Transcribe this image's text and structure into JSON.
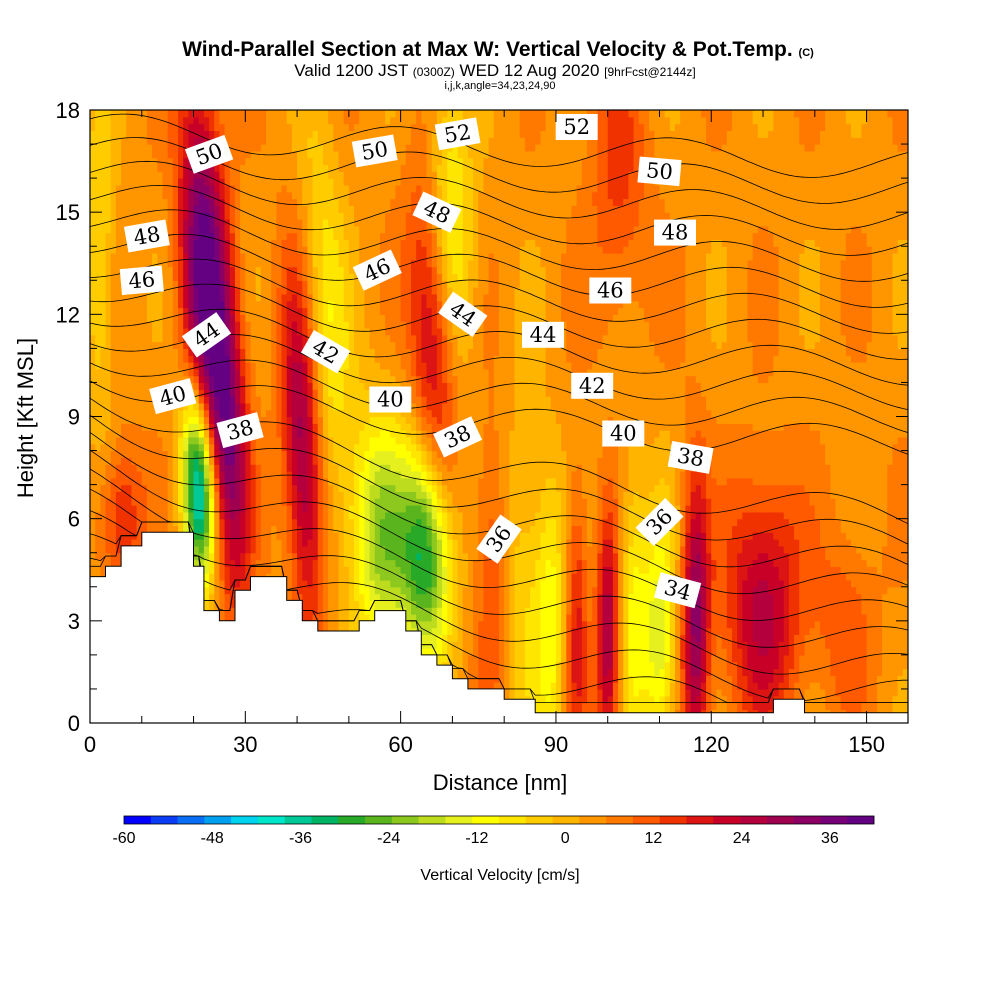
{
  "chart_data": {
    "type": "heatmap",
    "title": "Wind-Parallel Section at Max W: Vertical Velocity & Pot.Temp.",
    "title_mark": "(C)",
    "subtitle_valid": "Valid 1200 JST",
    "subtitle_utc": "(0300Z)",
    "subtitle_date": "WED 12 Aug 2020",
    "subtitle_fcst": "[9hrFcst@2144z]",
    "subtitle_indices": "i,j,k,angle=34,23,24,90",
    "xlabel": "Distance [nm]",
    "ylabel": "Height [Kft MSL]",
    "xlim": [
      0,
      158
    ],
    "ylim": [
      0,
      18
    ],
    "x_ticks": [
      0,
      30,
      60,
      90,
      120,
      150
    ],
    "y_ticks": [
      0,
      3,
      6,
      9,
      12,
      15,
      18
    ],
    "colorbar": {
      "label": "Vertical Velocity [cm/s]",
      "range": [
        -60,
        42
      ],
      "ticks": [
        -60,
        -48,
        -36,
        -24,
        -12,
        0,
        12,
        24,
        36
      ],
      "colors": [
        "#0000ff",
        "#0a3cf5",
        "#0a6ef5",
        "#00a0f0",
        "#00d2f0",
        "#00e6c8",
        "#00c896",
        "#00b464",
        "#28aa28",
        "#5ab41e",
        "#8cc81e",
        "#bedc1e",
        "#e6f01e",
        "#ffff00",
        "#ffe600",
        "#ffcc00",
        "#ffb400",
        "#ff9600",
        "#ff7800",
        "#ff5a00",
        "#f03200",
        "#dc1414",
        "#c80028",
        "#b4003c",
        "#a00050",
        "#8c0064",
        "#780078",
        "#640082"
      ]
    },
    "terrain_profile": [
      [
        0,
        4.3
      ],
      [
        3,
        4.3
      ],
      [
        3,
        4.6
      ],
      [
        6,
        4.6
      ],
      [
        6,
        5.2
      ],
      [
        10,
        5.2
      ],
      [
        10,
        5.6
      ],
      [
        20,
        5.6
      ],
      [
        20,
        4.6
      ],
      [
        22,
        4.6
      ],
      [
        22,
        3.3
      ],
      [
        25,
        3.3
      ],
      [
        25,
        3.0
      ],
      [
        28,
        3.0
      ],
      [
        28,
        3.9
      ],
      [
        31,
        3.9
      ],
      [
        31,
        4.3
      ],
      [
        38,
        4.3
      ],
      [
        38,
        3.6
      ],
      [
        41,
        3.6
      ],
      [
        41,
        3.0
      ],
      [
        44,
        3.0
      ],
      [
        44,
        2.7
      ],
      [
        52,
        2.7
      ],
      [
        52,
        3.0
      ],
      [
        55,
        3.0
      ],
      [
        55,
        3.3
      ],
      [
        61,
        3.3
      ],
      [
        61,
        2.7
      ],
      [
        64,
        2.7
      ],
      [
        64,
        2.0
      ],
      [
        67,
        2.0
      ],
      [
        67,
        1.7
      ],
      [
        70,
        1.7
      ],
      [
        70,
        1.3
      ],
      [
        73,
        1.3
      ],
      [
        73,
        1.0
      ],
      [
        80,
        1.0
      ],
      [
        80,
        0.7
      ],
      [
        86,
        0.7
      ],
      [
        86,
        0.3
      ],
      [
        132,
        0.3
      ],
      [
        132,
        0.7
      ],
      [
        138,
        0.7
      ],
      [
        138,
        0.3
      ],
      [
        158,
        0.3
      ]
    ],
    "w_cells": [
      {
        "x": 22,
        "z": 13.0,
        "w": 36,
        "sx": 3.0,
        "sz": 4.0,
        "tilt": 0.25
      },
      {
        "x": 21,
        "z": 7.0,
        "w": -48,
        "sx": 2.2,
        "sz": 2.0,
        "tilt": 0.2
      },
      {
        "x": 27,
        "z": 8.5,
        "w": 26,
        "sx": 2.5,
        "sz": 3.5,
        "tilt": 0.3
      },
      {
        "x": 41,
        "z": 8.0,
        "w": 26,
        "sx": 2.5,
        "sz": 3.5,
        "tilt": 0.3
      },
      {
        "x": 46,
        "z": 12.0,
        "w": -12,
        "sx": 3.0,
        "sz": 4.0,
        "tilt": 0.35
      },
      {
        "x": 56,
        "z": 5.5,
        "w": -24,
        "sx": 4.0,
        "sz": 2.5,
        "tilt": 0.1
      },
      {
        "x": 65,
        "z": 5.0,
        "w": -36,
        "sx": 3.5,
        "sz": 2.2,
        "tilt": 0.1
      },
      {
        "x": 66,
        "z": 11.0,
        "w": 18,
        "sx": 3.0,
        "sz": 3.5,
        "tilt": 0.3
      },
      {
        "x": 70,
        "z": 15.0,
        "w": -14,
        "sx": 3.0,
        "sz": 3.0,
        "tilt": 0.3
      },
      {
        "x": 78,
        "z": 4.5,
        "w": 12,
        "sx": 2.5,
        "sz": 3.0,
        "tilt": 0.05
      },
      {
        "x": 83,
        "z": 4.0,
        "w": -10,
        "sx": 3.5,
        "sz": 3.5,
        "tilt": 0.05
      },
      {
        "x": 89,
        "z": 3.0,
        "w": -14,
        "sx": 2.0,
        "sz": 3.0,
        "tilt": 0.0
      },
      {
        "x": 94,
        "z": 3.0,
        "w": 14,
        "sx": 1.5,
        "sz": 3.0,
        "tilt": 0.0
      },
      {
        "x": 100,
        "z": 2.5,
        "w": 24,
        "sx": 1.5,
        "sz": 2.5,
        "tilt": 0.0
      },
      {
        "x": 105,
        "z": 3.5,
        "w": -14,
        "sx": 1.8,
        "sz": 3.0,
        "tilt": 0.0
      },
      {
        "x": 110,
        "z": 2.5,
        "w": -20,
        "sx": 2.2,
        "sz": 2.5,
        "tilt": 0.0
      },
      {
        "x": 117,
        "z": 3.0,
        "w": 28,
        "sx": 1.8,
        "sz": 3.0,
        "tilt": 0.0
      },
      {
        "x": 130,
        "z": 3.5,
        "w": 22,
        "sx": 5.0,
        "sz": 2.5,
        "tilt": 0.0
      },
      {
        "x": 146,
        "z": 3.0,
        "w": 8,
        "sx": 4.0,
        "sz": 2.0,
        "tilt": 0.0
      },
      {
        "x": 6,
        "z": 6.0,
        "w": 14,
        "sx": 3.0,
        "sz": 1.5,
        "tilt": 0.0
      },
      {
        "x": 102,
        "z": 16.0,
        "w": 10,
        "sx": 4.0,
        "sz": 3.0,
        "tilt": 0.2
      },
      {
        "x": 2,
        "z": 14.0,
        "w": -10,
        "sx": 2.0,
        "sz": 4.0,
        "tilt": 0.0
      }
    ],
    "theta_contours": [
      34,
      36,
      38,
      40,
      42,
      44,
      46,
      48,
      50,
      52
    ],
    "contour_labels": [
      {
        "text": "50",
        "x": 23,
        "z": 16.7,
        "rot": -20
      },
      {
        "text": "48",
        "x": 11,
        "z": 14.3,
        "rot": -10
      },
      {
        "text": "46",
        "x": 10,
        "z": 13.0,
        "rot": -5
      },
      {
        "text": "44",
        "x": 22.5,
        "z": 11.4,
        "rot": -35
      },
      {
        "text": "40",
        "x": 16,
        "z": 9.6,
        "rot": -15
      },
      {
        "text": "38",
        "x": 29,
        "z": 8.6,
        "rot": -15
      },
      {
        "text": "42",
        "x": 45.5,
        "z": 10.9,
        "rot": 30
      },
      {
        "text": "50",
        "x": 55,
        "z": 16.8,
        "rot": -10
      },
      {
        "text": "46",
        "x": 55.5,
        "z": 13.3,
        "rot": -25
      },
      {
        "text": "48",
        "x": 67,
        "z": 15.0,
        "rot": 25
      },
      {
        "text": "52",
        "x": 71,
        "z": 17.3,
        "rot": -10
      },
      {
        "text": "44",
        "x": 72,
        "z": 12.0,
        "rot": 35
      },
      {
        "text": "40",
        "x": 58,
        "z": 9.5,
        "rot": 0
      },
      {
        "text": "38",
        "x": 71,
        "z": 8.4,
        "rot": -25
      },
      {
        "text": "36",
        "x": 79,
        "z": 5.4,
        "rot": -55
      },
      {
        "text": "44",
        "x": 87.5,
        "z": 11.4,
        "rot": 0
      },
      {
        "text": "52",
        "x": 94,
        "z": 17.5,
        "rot": 0
      },
      {
        "text": "46",
        "x": 100.5,
        "z": 12.7,
        "rot": 0
      },
      {
        "text": "42",
        "x": 97,
        "z": 9.9,
        "rot": 0
      },
      {
        "text": "40",
        "x": 103,
        "z": 8.5,
        "rot": 0
      },
      {
        "text": "50",
        "x": 110,
        "z": 16.2,
        "rot": 5
      },
      {
        "text": "48",
        "x": 113,
        "z": 14.4,
        "rot": 0
      },
      {
        "text": "38",
        "x": 116,
        "z": 7.8,
        "rot": 10
      },
      {
        "text": "36",
        "x": 110,
        "z": 5.9,
        "rot": -45
      },
      {
        "text": "34",
        "x": 113.5,
        "z": 3.9,
        "rot": 15
      }
    ]
  }
}
